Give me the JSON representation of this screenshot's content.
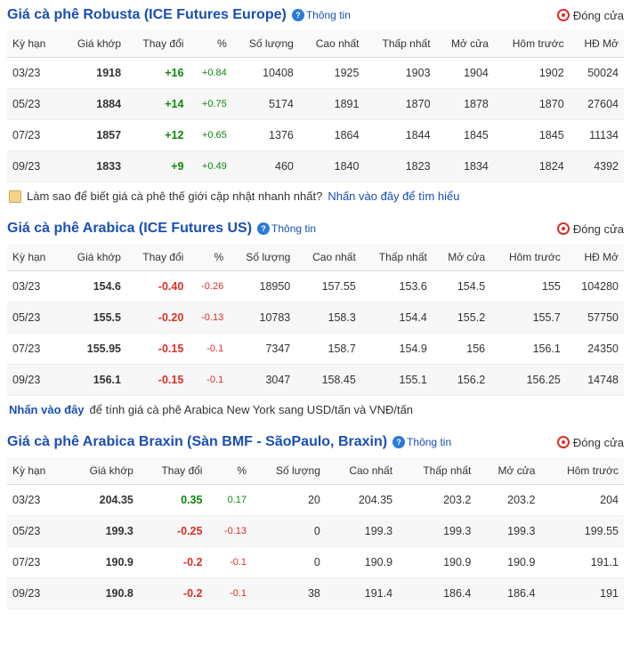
{
  "sections": [
    {
      "title": "Giá cà phê Robusta (ICE Futures Europe)",
      "info_label": "Thông tin",
      "status": "Đóng cửa",
      "columns": [
        "Kỳ hạn",
        "Giá khớp",
        "Thay đổi",
        "%",
        "Số lượng",
        "Cao nhất",
        "Thấp nhất",
        "Mở cửa",
        "Hôm trước",
        "HĐ Mở"
      ],
      "rows": [
        {
          "term": "03/23",
          "price": "1918",
          "change": "+16",
          "pct": "+0.84",
          "vol": "10408",
          "high": "1925",
          "low": "1903",
          "open": "1904",
          "prev": "1902",
          "oi": "50024",
          "dir": "pos"
        },
        {
          "term": "05/23",
          "price": "1884",
          "change": "+14",
          "pct": "+0.75",
          "vol": "5174",
          "high": "1891",
          "low": "1870",
          "open": "1878",
          "prev": "1870",
          "oi": "27604",
          "dir": "pos"
        },
        {
          "term": "07/23",
          "price": "1857",
          "change": "+12",
          "pct": "+0.65",
          "vol": "1376",
          "high": "1864",
          "low": "1844",
          "open": "1845",
          "prev": "1845",
          "oi": "11134",
          "dir": "pos"
        },
        {
          "term": "09/23",
          "price": "1833",
          "change": "+9",
          "pct": "+0.49",
          "vol": "460",
          "high": "1840",
          "low": "1823",
          "open": "1834",
          "prev": "1824",
          "oi": "4392",
          "dir": "pos"
        }
      ],
      "note_prefix": "Làm sao để biết giá cà phê thế giới cập nhật nhanh nhất?",
      "note_link": "Nhấn vào đây để tìm hiểu",
      "note_mode": "prefix_plain"
    },
    {
      "title": "Giá cà phê Arabica (ICE Futures US)",
      "info_label": "Thông tin",
      "status": "Đóng cửa",
      "columns": [
        "Kỳ hạn",
        "Giá khớp",
        "Thay đổi",
        "%",
        "Số lượng",
        "Cao nhất",
        "Thấp nhất",
        "Mở cửa",
        "Hôm trước",
        "HĐ Mở"
      ],
      "rows": [
        {
          "term": "03/23",
          "price": "154.6",
          "change": "-0.40",
          "pct": "-0.26",
          "vol": "18950",
          "high": "157.55",
          "low": "153.6",
          "open": "154.5",
          "prev": "155",
          "oi": "104280",
          "dir": "neg"
        },
        {
          "term": "05/23",
          "price": "155.5",
          "change": "-0.20",
          "pct": "-0.13",
          "vol": "10783",
          "high": "158.3",
          "low": "154.4",
          "open": "155.2",
          "prev": "155.7",
          "oi": "57750",
          "dir": "neg"
        },
        {
          "term": "07/23",
          "price": "155.95",
          "change": "-0.15",
          "pct": "-0.1",
          "vol": "7347",
          "high": "158.7",
          "low": "154.9",
          "open": "156",
          "prev": "156.1",
          "oi": "24350",
          "dir": "neg"
        },
        {
          "term": "09/23",
          "price": "156.1",
          "change": "-0.15",
          "pct": "-0.1",
          "vol": "3047",
          "high": "158.45",
          "low": "155.1",
          "open": "156.2",
          "prev": "156.25",
          "oi": "14748",
          "dir": "neg"
        }
      ],
      "note_link": "Nhấn vào đây",
      "note_suffix": "để tính giá cà phê Arabica New York sang USD/tấn và VNĐ/tấn",
      "note_mode": "link_first"
    },
    {
      "title": "Giá cà phê Arabica Braxin (Sàn BMF - SãoPaulo, Braxin)",
      "info_label": "Thông tin",
      "status": "Đóng cửa",
      "columns": [
        "Kỳ hạn",
        "Giá khớp",
        "Thay đổi",
        "%",
        "Số lượng",
        "Cao nhất",
        "Thấp nhất",
        "Mở cửa",
        "Hôm trước"
      ],
      "rows": [
        {
          "term": "03/23",
          "price": "204.35",
          "change": "0.35",
          "pct": "0.17",
          "vol": "20",
          "high": "204.35",
          "low": "203.2",
          "open": "203.2",
          "prev": "204",
          "dir": "pos"
        },
        {
          "term": "05/23",
          "price": "199.3",
          "change": "-0.25",
          "pct": "-0.13",
          "vol": "0",
          "high": "199.3",
          "low": "199.3",
          "open": "199.3",
          "prev": "199.55",
          "dir": "neg"
        },
        {
          "term": "07/23",
          "price": "190.9",
          "change": "-0.2",
          "pct": "-0.1",
          "vol": "0",
          "high": "190.9",
          "low": "190.9",
          "open": "190.9",
          "prev": "191.1",
          "dir": "neg"
        },
        {
          "term": "09/23",
          "price": "190.8",
          "change": "-0.2",
          "pct": "-0.1",
          "vol": "38",
          "high": "191.4",
          "low": "186.4",
          "open": "186.4",
          "prev": "191",
          "dir": "neg"
        }
      ]
    }
  ]
}
